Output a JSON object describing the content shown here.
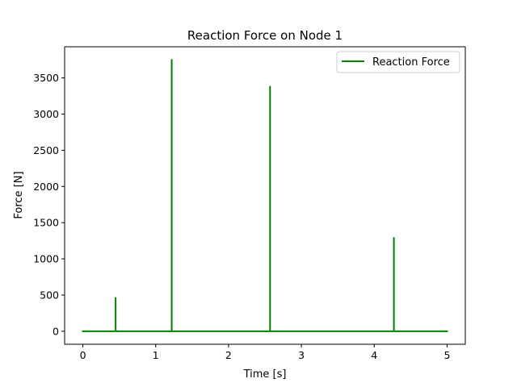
{
  "chart_data": {
    "type": "line",
    "title": "Reaction Force on Node 1",
    "xlabel": "Time [s]",
    "ylabel": "Force [N]",
    "xlim": [
      -0.25,
      5.25
    ],
    "ylim": [
      -180,
      3930
    ],
    "xticks": [
      0,
      1,
      2,
      3,
      4,
      5
    ],
    "yticks": [
      0,
      500,
      1000,
      1500,
      2000,
      2500,
      3000,
      3500
    ],
    "grid": false,
    "legend_position": "top-right",
    "series": [
      {
        "name": "Reaction Force",
        "color": "#008000",
        "x": [
          0,
          0.45,
          0.45,
          0.45,
          1.22,
          1.22,
          1.22,
          2.57,
          2.57,
          2.57,
          4.27,
          4.27,
          4.27,
          5.0
        ],
        "y": [
          0,
          0,
          460,
          0,
          0,
          3750,
          0,
          0,
          3380,
          0,
          0,
          1290,
          0,
          0
        ]
      }
    ]
  }
}
